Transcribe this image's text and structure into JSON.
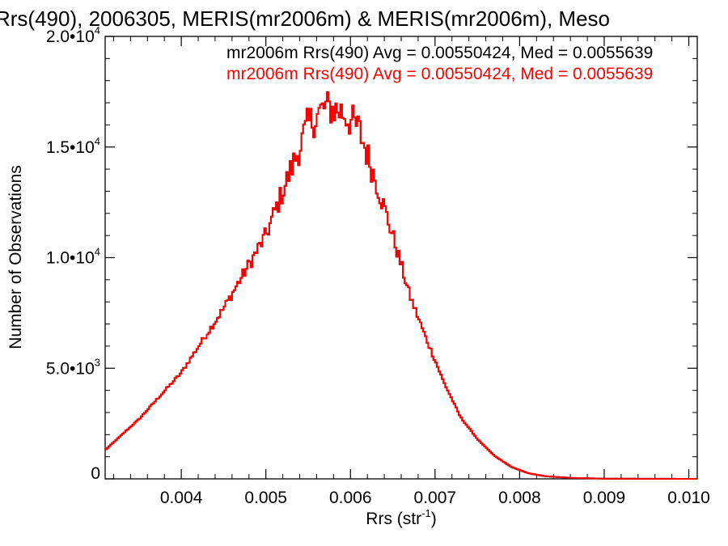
{
  "chart_data": {
    "type": "histogram",
    "title": "Rrs(490), 2006305, MERIS(mr2006m) & MERIS(mr2006m), Meso",
    "xlabel": "Rrs (str",
    "xlabel_sup": "-1",
    "xlabel_close": ")",
    "ylabel": "Number of Observations",
    "xlim": [
      0.0031,
      0.0101
    ],
    "ylim": [
      0,
      20000
    ],
    "x_ticks": [
      {
        "value": 0.004,
        "label": "0.004"
      },
      {
        "value": 0.005,
        "label": "0.005"
      },
      {
        "value": 0.006,
        "label": "0.006"
      },
      {
        "value": 0.007,
        "label": "0.007"
      },
      {
        "value": 0.008,
        "label": "0.008"
      },
      {
        "value": 0.009,
        "label": "0.009"
      },
      {
        "value": 0.01,
        "label": "0.010"
      }
    ],
    "y_ticks": [
      {
        "value": 0,
        "mant": "0",
        "exp": ""
      },
      {
        "value": 5000,
        "mant": "5.0•10",
        "exp": "3"
      },
      {
        "value": 10000,
        "mant": "1.0•10",
        "exp": "4"
      },
      {
        "value": 15000,
        "mant": "1.5•10",
        "exp": "4"
      },
      {
        "value": 20000,
        "mant": "2.0•10",
        "exp": "4"
      }
    ],
    "series": [
      {
        "name": "mr2006m Rrs(490) Avg = 0.00550424, Med = 0.0055639",
        "color": "#000000"
      },
      {
        "name": "mr2006m Rrs(490) Avg = 0.00550424, Med = 0.0055639",
        "color": "#ff0000"
      }
    ],
    "bins": {
      "bin_width": 2e-05,
      "x": [
        0.0031,
        0.0035,
        0.004,
        0.0045,
        0.005,
        0.0053,
        0.0055,
        0.0057,
        0.0059,
        0.0061,
        0.0063,
        0.0065,
        0.0067,
        0.0069,
        0.0071,
        0.0073,
        0.0075,
        0.0077,
        0.0079,
        0.0081,
        0.0083,
        0.0086,
        0.009,
        0.0101
      ],
      "y": [
        1300,
        2700,
        4800,
        7700,
        11000,
        14000,
        16000,
        16800,
        16600,
        15800,
        13500,
        11000,
        8300,
        6300,
        4400,
        2800,
        1800,
        1050,
        540,
        260,
        120,
        45,
        10,
        0
      ],
      "noise_amplitude": 1700
    }
  }
}
